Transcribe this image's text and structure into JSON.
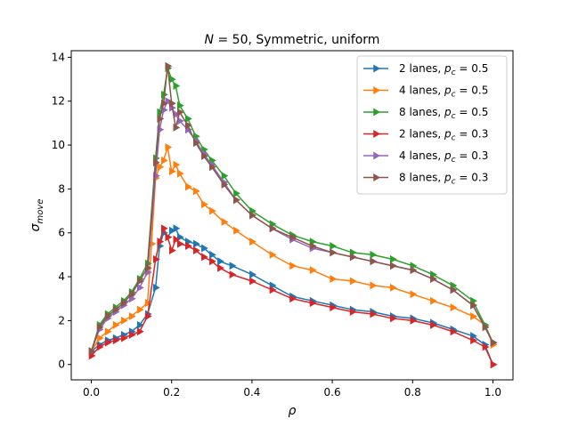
{
  "chart_data": {
    "type": "line",
    "title": "N = 50, Symmetric, uniform",
    "title_parts": {
      "var": "N",
      "rest": " = 50, Symmetric, uniform"
    },
    "xlabel": "ρ",
    "ylabel": "σ",
    "ylabel_sub": "move",
    "xlim": [
      -0.05,
      1.05
    ],
    "ylim": [
      -0.7,
      14.3
    ],
    "xticks": [
      0.0,
      0.2,
      0.4,
      0.6,
      0.8,
      1.0
    ],
    "xtick_labels": [
      "0.0",
      "0.2",
      "0.4",
      "0.6",
      "0.8",
      "1.0"
    ],
    "yticks": [
      0,
      2,
      4,
      6,
      8,
      10,
      12,
      14
    ],
    "ytick_labels": [
      "0",
      "2",
      "4",
      "6",
      "8",
      "10",
      "12",
      "14"
    ],
    "grid": false,
    "legend_position": "top-right",
    "marker": "triangle-right",
    "series": [
      {
        "name_prefix": "2 lanes, ",
        "name_var": "p",
        "name_sub": "c",
        "name_suffix": " = 0.5",
        "color": "#1f77b4",
        "x": [
          0.0,
          0.02,
          0.04,
          0.06,
          0.08,
          0.1,
          0.12,
          0.14,
          0.16,
          0.17,
          0.18,
          0.19,
          0.2,
          0.21,
          0.22,
          0.24,
          0.26,
          0.28,
          0.3,
          0.32,
          0.35,
          0.4,
          0.45,
          0.5,
          0.55,
          0.6,
          0.65,
          0.7,
          0.75,
          0.8,
          0.85,
          0.9,
          0.95,
          0.98,
          1.0
        ],
        "y": [
          0.6,
          0.9,
          1.1,
          1.2,
          1.35,
          1.5,
          1.8,
          2.3,
          3.5,
          5.4,
          6.0,
          5.8,
          6.1,
          6.2,
          5.8,
          5.6,
          5.5,
          5.3,
          5.0,
          4.7,
          4.5,
          4.1,
          3.6,
          3.1,
          2.9,
          2.7,
          2.5,
          2.4,
          2.2,
          2.1,
          1.9,
          1.6,
          1.3,
          0.9,
          0.0
        ]
      },
      {
        "name_prefix": "4 lanes, ",
        "name_var": "p",
        "name_sub": "c",
        "name_suffix": " = 0.5",
        "color": "#ff7f0e",
        "x": [
          0.0,
          0.02,
          0.04,
          0.06,
          0.08,
          0.1,
          0.12,
          0.14,
          0.15,
          0.16,
          0.17,
          0.18,
          0.19,
          0.2,
          0.21,
          0.22,
          0.24,
          0.26,
          0.28,
          0.3,
          0.33,
          0.36,
          0.4,
          0.45,
          0.5,
          0.55,
          0.6,
          0.65,
          0.7,
          0.75,
          0.8,
          0.85,
          0.9,
          0.95,
          0.98,
          1.0
        ],
        "y": [
          0.6,
          1.2,
          1.5,
          1.8,
          2.0,
          2.2,
          2.5,
          2.8,
          5.5,
          8.5,
          9.0,
          9.3,
          9.9,
          8.8,
          9.1,
          8.7,
          8.1,
          7.9,
          7.3,
          7.0,
          6.5,
          6.1,
          5.6,
          5.0,
          4.5,
          4.3,
          3.9,
          3.8,
          3.6,
          3.5,
          3.2,
          2.9,
          2.6,
          2.2,
          1.8,
          0.9
        ]
      },
      {
        "name_prefix": "8 lanes, ",
        "name_var": "p",
        "name_sub": "c",
        "name_suffix": " = 0.5",
        "color": "#2ca02c",
        "x": [
          0.0,
          0.02,
          0.04,
          0.06,
          0.08,
          0.1,
          0.12,
          0.14,
          0.16,
          0.17,
          0.18,
          0.19,
          0.2,
          0.21,
          0.22,
          0.24,
          0.26,
          0.28,
          0.3,
          0.33,
          0.36,
          0.4,
          0.45,
          0.5,
          0.55,
          0.6,
          0.65,
          0.7,
          0.75,
          0.8,
          0.85,
          0.9,
          0.95,
          0.98,
          1.0
        ],
        "y": [
          0.6,
          1.8,
          2.3,
          2.6,
          2.9,
          3.3,
          3.9,
          4.6,
          9.4,
          11.5,
          12.3,
          13.5,
          13.0,
          12.7,
          11.8,
          11.2,
          10.4,
          9.8,
          9.3,
          8.6,
          7.8,
          7.0,
          6.4,
          5.9,
          5.6,
          5.4,
          5.1,
          5.0,
          4.8,
          4.5,
          4.1,
          3.6,
          2.9,
          1.8,
          1.0
        ]
      },
      {
        "name_prefix": "2 lanes, ",
        "name_var": "p",
        "name_sub": "c",
        "name_suffix": " = 0.3",
        "color": "#d62728",
        "x": [
          0.0,
          0.02,
          0.04,
          0.06,
          0.08,
          0.1,
          0.12,
          0.14,
          0.16,
          0.17,
          0.18,
          0.19,
          0.2,
          0.21,
          0.22,
          0.24,
          0.26,
          0.28,
          0.3,
          0.32,
          0.35,
          0.4,
          0.45,
          0.5,
          0.55,
          0.6,
          0.65,
          0.7,
          0.75,
          0.8,
          0.85,
          0.9,
          0.95,
          0.98,
          1.0
        ],
        "y": [
          0.4,
          0.8,
          1.0,
          1.1,
          1.2,
          1.35,
          1.5,
          2.2,
          4.8,
          5.6,
          6.2,
          5.8,
          5.2,
          5.7,
          5.5,
          5.4,
          5.2,
          4.9,
          4.7,
          4.4,
          4.1,
          3.8,
          3.4,
          3.0,
          2.8,
          2.6,
          2.4,
          2.3,
          2.1,
          2.0,
          1.8,
          1.5,
          1.1,
          0.8,
          0.0
        ]
      },
      {
        "name_prefix": "4 lanes, ",
        "name_var": "p",
        "name_sub": "c",
        "name_suffix": " = 0.3",
        "color": "#9467bd",
        "x": [
          0.0,
          0.02,
          0.04,
          0.06,
          0.08,
          0.1,
          0.12,
          0.14,
          0.16,
          0.17,
          0.18,
          0.19,
          0.2,
          0.21,
          0.22,
          0.24,
          0.26,
          0.28,
          0.3,
          0.33,
          0.36,
          0.4,
          0.45,
          0.5,
          0.55,
          0.6,
          0.65,
          0.7,
          0.75,
          0.8,
          0.85,
          0.9,
          0.95,
          0.98,
          1.0
        ],
        "y": [
          0.6,
          1.6,
          2.1,
          2.4,
          2.7,
          3.0,
          3.5,
          4.2,
          8.6,
          10.7,
          11.6,
          12.0,
          11.7,
          11.4,
          11.1,
          10.7,
          10.2,
          9.6,
          9.1,
          8.3,
          7.5,
          6.8,
          6.2,
          5.7,
          5.3,
          5.1,
          4.9,
          4.7,
          4.5,
          4.3,
          3.9,
          3.4,
          2.7,
          1.7,
          1.0
        ]
      },
      {
        "name_prefix": "8 lanes, ",
        "name_var": "p",
        "name_sub": "c",
        "name_suffix": " = 0.3",
        "color": "#8c564b",
        "x": [
          0.0,
          0.02,
          0.04,
          0.06,
          0.08,
          0.1,
          0.12,
          0.14,
          0.16,
          0.17,
          0.18,
          0.19,
          0.2,
          0.21,
          0.22,
          0.24,
          0.26,
          0.28,
          0.3,
          0.33,
          0.36,
          0.4,
          0.45,
          0.5,
          0.55,
          0.6,
          0.65,
          0.7,
          0.75,
          0.8,
          0.85,
          0.9,
          0.95,
          0.98,
          1.0
        ],
        "y": [
          0.6,
          1.7,
          2.2,
          2.5,
          2.8,
          3.2,
          3.8,
          4.4,
          9.2,
          11.2,
          11.9,
          13.6,
          11.9,
          10.8,
          11.5,
          10.9,
          10.1,
          9.5,
          9.0,
          8.2,
          7.5,
          6.8,
          6.2,
          5.8,
          5.4,
          5.1,
          4.9,
          4.7,
          4.5,
          4.3,
          3.9,
          3.4,
          2.7,
          1.7,
          1.0
        ]
      }
    ]
  }
}
